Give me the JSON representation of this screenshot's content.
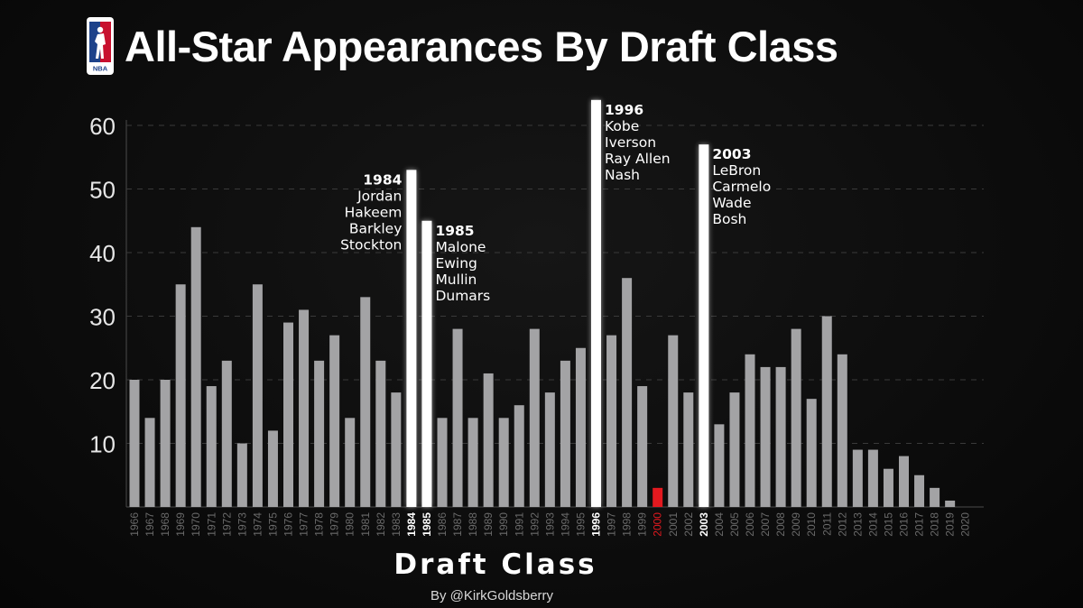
{
  "header": {
    "title": "All-Star Appearances By Draft Class",
    "logo_text": "NBA"
  },
  "colors": {
    "background": "#0c0c0c",
    "bar_default": "#a3a3a5",
    "bar_highlight": "#ffffff",
    "bar_red": "#e3191f",
    "tick_label_default": "#6a6a6a",
    "grid": "#3a3a3a"
  },
  "chart_data": {
    "type": "bar",
    "title": "All-Star Appearances By Draft Class",
    "xlabel": "Draft Class",
    "ylabel": "",
    "ylim": [
      0,
      60
    ],
    "yticks": [
      10,
      20,
      30,
      40,
      50,
      60
    ],
    "grid": true,
    "categories": [
      "1966",
      "1967",
      "1968",
      "1969",
      "1970",
      "1971",
      "1972",
      "1973",
      "1974",
      "1975",
      "1976",
      "1977",
      "1978",
      "1979",
      "1980",
      "1981",
      "1982",
      "1983",
      "1984",
      "1985",
      "1986",
      "1987",
      "1988",
      "1989",
      "1990",
      "1991",
      "1992",
      "1993",
      "1994",
      "1995",
      "1996",
      "1997",
      "1998",
      "1999",
      "2000",
      "2001",
      "2002",
      "2003",
      "2004",
      "2005",
      "2006",
      "2007",
      "2008",
      "2009",
      "2010",
      "2011",
      "2012",
      "2013",
      "2014",
      "2015",
      "2016",
      "2017",
      "2018",
      "2019",
      "2020"
    ],
    "values": [
      20,
      14,
      20,
      35,
      44,
      19,
      23,
      10,
      35,
      12,
      29,
      31,
      23,
      27,
      14,
      33,
      23,
      18,
      53,
      45,
      14,
      28,
      14,
      21,
      14,
      16,
      28,
      18,
      23,
      25,
      64,
      27,
      36,
      19,
      3,
      27,
      18,
      57,
      13,
      18,
      24,
      22,
      22,
      28,
      17,
      30,
      24,
      9,
      9,
      6,
      8,
      5,
      3,
      1,
      0
    ],
    "highlighted": [
      "1984",
      "1985",
      "1996",
      "2003"
    ],
    "red": [
      "2000"
    ],
    "annotations": [
      {
        "category": "1984",
        "side": "left",
        "lines": [
          "1984",
          "Jordan",
          "Hakeem",
          "Barkley",
          "Stockton"
        ]
      },
      {
        "category": "1985",
        "side": "right",
        "lines": [
          "1985",
          "Malone",
          "Ewing",
          "Mullin",
          "Dumars"
        ]
      },
      {
        "category": "1996",
        "side": "right",
        "lines": [
          "1996",
          "Kobe",
          "Iverson",
          "Ray Allen",
          "Nash"
        ]
      },
      {
        "category": "2003",
        "side": "right",
        "lines": [
          "2003",
          "LeBron",
          "Carmelo",
          "Wade",
          "Bosh"
        ]
      }
    ]
  },
  "footer": {
    "byline": "By @KirkGoldsberry"
  }
}
